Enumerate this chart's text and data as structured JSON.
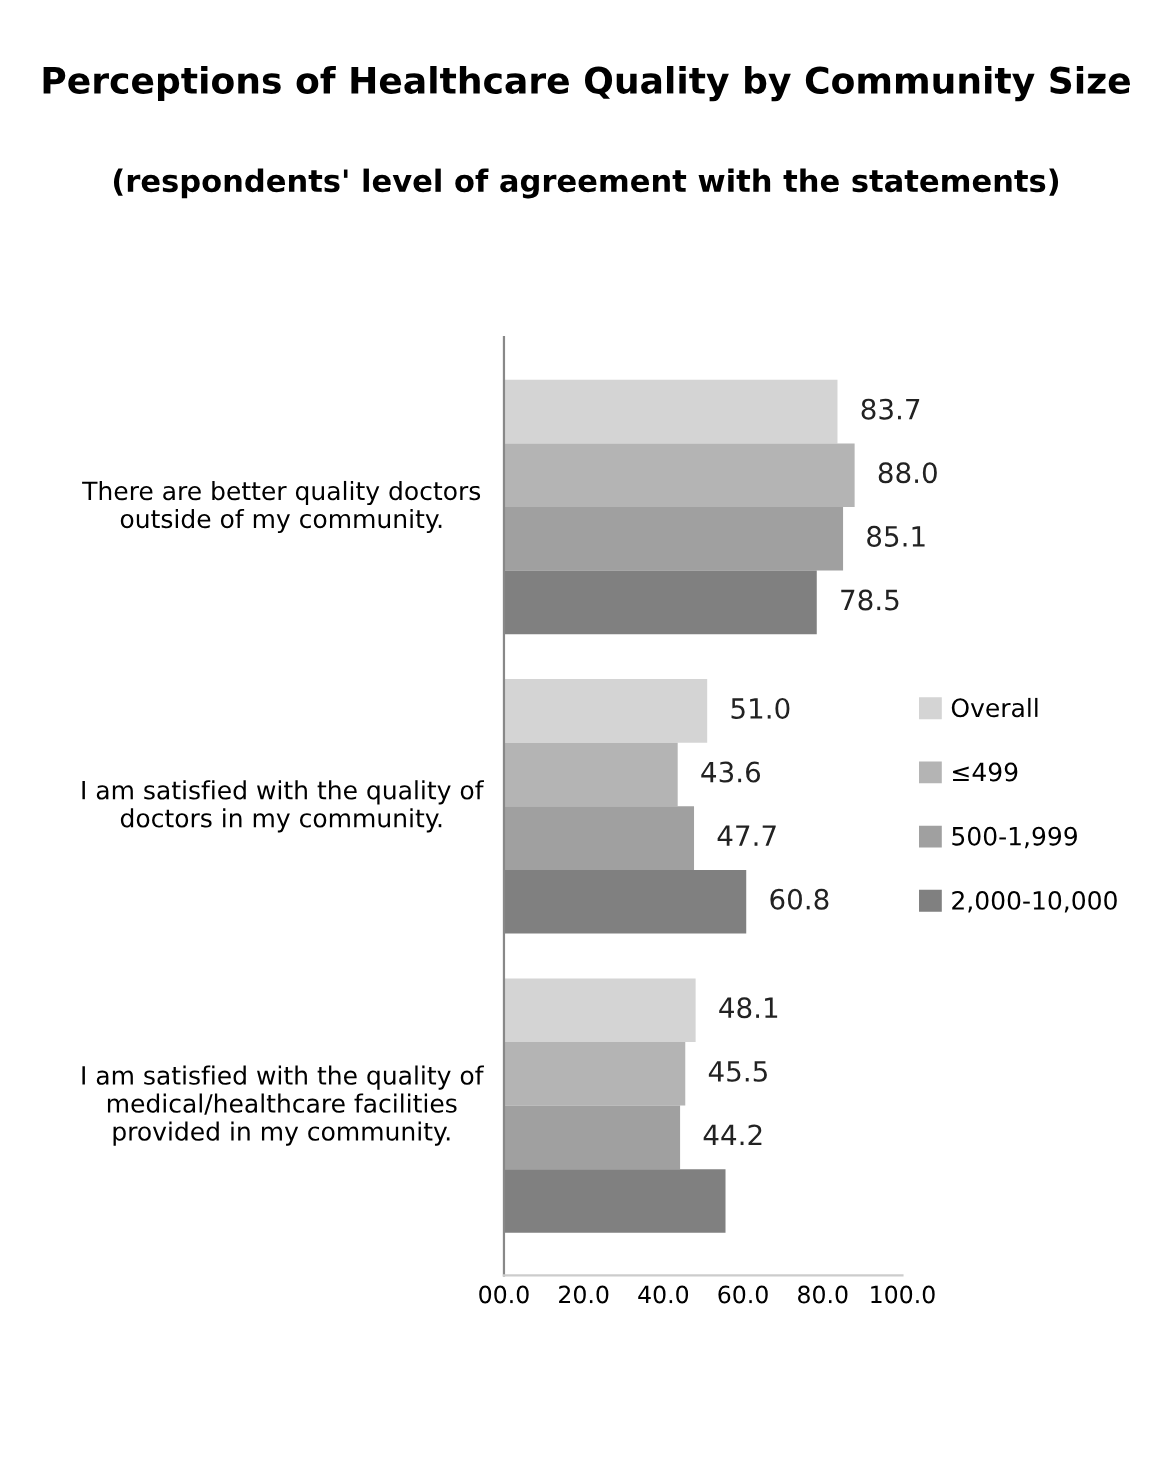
{
  "chart_data": {
    "type": "bar",
    "orientation": "horizontal",
    "title": "Perceptions of Healthcare Quality by Community Size",
    "subtitle": "(respondents' level of agreement with the statements)",
    "categories": [
      "There are better quality doctors outside of my community.",
      "I am satisfied with the quality of doctors in my community.",
      "I am satisfied with the quality of medical/healthcare facilities provided in my community."
    ],
    "series": [
      {
        "name": "Overall",
        "color": "#d4d4d4",
        "values": [
          83.7,
          51.0,
          48.1
        ],
        "value_labels": [
          "83.7",
          "51.0",
          "48.1"
        ]
      },
      {
        "name": "≤499",
        "color": "#b4b4b4",
        "values": [
          88.0,
          43.6,
          45.5
        ],
        "value_labels": [
          "88.0",
          "43.6",
          "45.5"
        ]
      },
      {
        "name": "500-1,999",
        "color": "#a0a0a0",
        "values": [
          85.1,
          47.7,
          44.2
        ],
        "value_labels": [
          "85.1",
          "47.7",
          "44.2"
        ]
      },
      {
        "name": "2,000-10,000",
        "color": "#808080",
        "values": [
          78.5,
          60.8,
          55.6
        ],
        "value_labels": [
          "78.5",
          "60.8",
          null
        ]
      }
    ],
    "xlim": [
      0,
      100
    ],
    "xticks": [
      {
        "value": 0,
        "label": "00.0"
      },
      {
        "value": 20,
        "label": "20.0"
      },
      {
        "value": 40,
        "label": "40.0"
      },
      {
        "value": 60,
        "label": "60.0"
      },
      {
        "value": 80,
        "label": "80.0"
      },
      {
        "value": 100,
        "label": "100.0"
      }
    ],
    "legend": "right",
    "grid": false
  }
}
